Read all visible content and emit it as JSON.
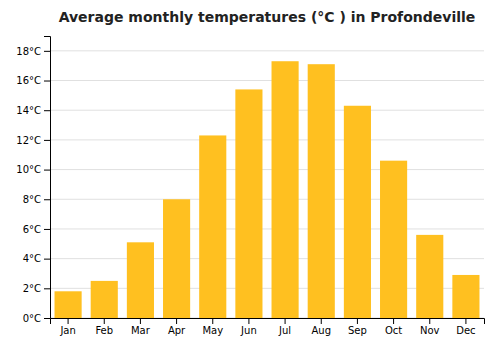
{
  "chart_data": {
    "type": "bar",
    "title": "Average monthly temperatures (°C ) in Profondeville",
    "categories": [
      "Jan",
      "Feb",
      "Mar",
      "Apr",
      "May",
      "Jun",
      "Jul",
      "Aug",
      "Sep",
      "Oct",
      "Nov",
      "Dec"
    ],
    "values": [
      1.8,
      2.5,
      5.1,
      8.0,
      12.3,
      15.4,
      17.3,
      17.1,
      14.3,
      10.6,
      5.6,
      2.9
    ],
    "color": "#FFC020",
    "ylim": [
      0,
      19
    ],
    "yticks": [
      {
        "value": 0,
        "label": "0°C"
      },
      {
        "value": 2,
        "label": "2°C"
      },
      {
        "value": 4,
        "label": "4°C"
      },
      {
        "value": 6,
        "label": "6°C"
      },
      {
        "value": 8,
        "label": "8°C"
      },
      {
        "value": 10,
        "label": "10°C"
      },
      {
        "value": 12,
        "label": "12°C"
      },
      {
        "value": 14,
        "label": "14°C"
      },
      {
        "value": 16,
        "label": "16°C"
      },
      {
        "value": 18,
        "label": "18°C"
      }
    ],
    "grid": true
  }
}
